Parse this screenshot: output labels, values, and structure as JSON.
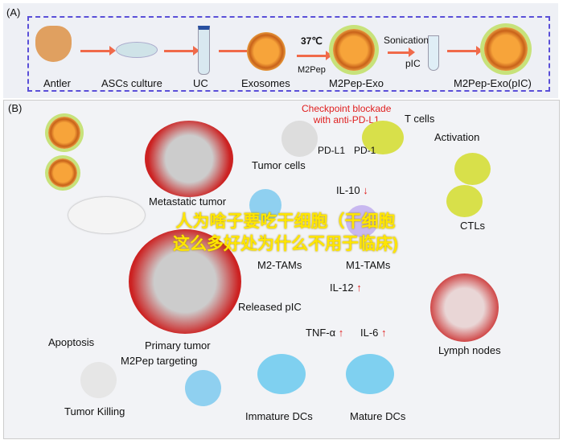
{
  "panel_a": {
    "label": "(A)",
    "steps": [
      "Antler",
      "ASCs culture",
      "UC",
      "Exosomes",
      "M2Pep-Exo",
      "M2Pep-Exo(pIC)"
    ],
    "temp": "37℃",
    "peptide": "M2Pep",
    "sonication": "Sonication",
    "pic": "pIC"
  },
  "panel_b": {
    "label": "(B)",
    "checkpoint": "Checkpoint blockade",
    "anti": "with anti-PD-L1",
    "t_cells": "T cells",
    "pd_l1": "PD-L1",
    "pd_1": "PD-1",
    "tumor_cells": "Tumor cells",
    "metastatic": "Metastatic tumor",
    "activation": "Activation",
    "il10": "IL-10",
    "m2tams": "M2-TAMs",
    "m1tams": "M1-TAMs",
    "ctls": "CTLs",
    "il12": "IL-12",
    "released_pic": "Released pIC",
    "tnf": "TNF-α",
    "il6": "IL-6",
    "lymph": "Lymph nodes",
    "primary": "Primary tumor",
    "apoptosis": "Apoptosis",
    "targeting": "M2Pep targeting",
    "killing": "Tumor Killing",
    "immature": "Immature DCs",
    "mature": "Mature DCs",
    "up": "↑",
    "down": "↓"
  },
  "watermark": {
    "line1": "人为啥子要吃干细胞（干细胞",
    "line2": "这么多好处为什么不用于临床)"
  }
}
